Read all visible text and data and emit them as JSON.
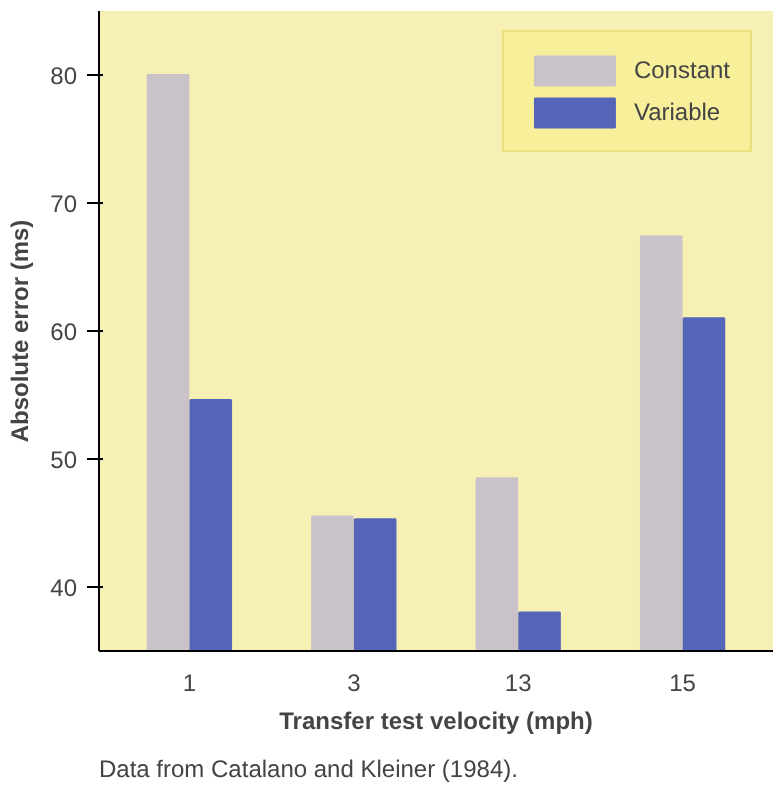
{
  "chart_data": {
    "type": "bar",
    "xlabel": "Transfer test velocity (mph)",
    "ylabel": "Absolute error (ms)",
    "categories": [
      "1",
      "3",
      "13",
      "15"
    ],
    "series": [
      {
        "name": "Constant",
        "color": "#c9c3c9",
        "values": [
          80,
          45.5,
          48.5,
          67.4
        ]
      },
      {
        "name": "Variable",
        "color": "#5565b8",
        "values": [
          54.6,
          45.3,
          38,
          61
        ]
      }
    ],
    "ylim": [
      35,
      85
    ],
    "yticks": [
      40,
      50,
      60,
      70,
      80
    ],
    "grid": false,
    "legend": "top right",
    "annotations": [
      "Data from Catalano and Kleiner (1984)."
    ]
  }
}
